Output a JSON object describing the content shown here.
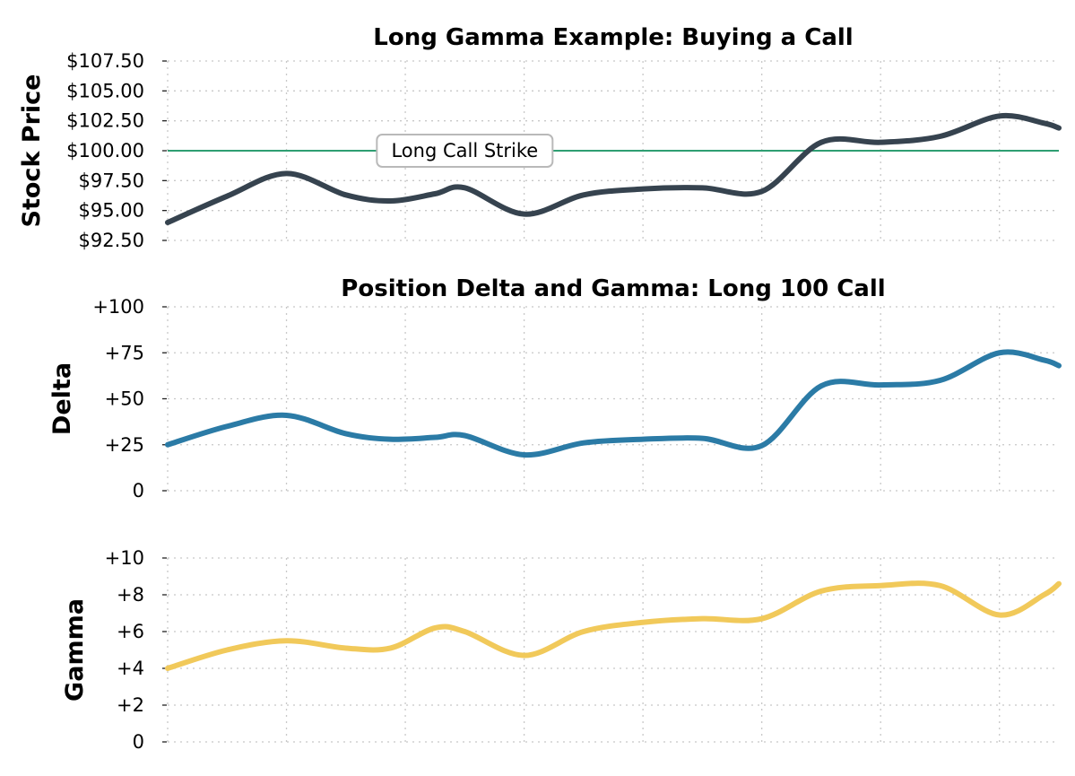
{
  "chart_data": [
    {
      "type": "line",
      "title": "Long Gamma Example: Buying a Call",
      "ylabel": "Stock Price",
      "ylim": [
        92.5,
        107.5
      ],
      "yticks": [
        92.5,
        95,
        97.5,
        100,
        102.5,
        105,
        107.5
      ],
      "ytick_labels": [
        "$92.50",
        "$95.00",
        "$97.50",
        "$100.00",
        "$102.50",
        "$105.00",
        "$107.50"
      ],
      "xlim": [
        0,
        15
      ],
      "xgrid": [
        0,
        2,
        4,
        6,
        8,
        10,
        12,
        14
      ],
      "grid": true,
      "series": [
        {
          "color": "#36434f",
          "x": [
            0,
            1,
            2,
            3,
            3.75,
            4.5,
            5,
            6,
            7,
            8,
            9,
            10,
            11,
            12,
            13,
            14,
            14.75,
            15
          ],
          "y": [
            94,
            96.2,
            98.1,
            96.3,
            95.8,
            96.4,
            96.9,
            94.7,
            96.3,
            96.8,
            96.9,
            96.6,
            100.7,
            100.7,
            101.2,
            102.9,
            102.3,
            101.9
          ]
        }
      ],
      "hline": {
        "y": 100,
        "color": "#2e9e72",
        "label": "Long Call Strike",
        "label_x": 5
      }
    },
    {
      "type": "line",
      "title": "Position Delta and Gamma: Long 100 Call",
      "ylabel": "Delta",
      "ylim": [
        0,
        100
      ],
      "yticks": [
        0,
        25,
        50,
        75,
        100
      ],
      "ytick_labels": [
        "0",
        "+25",
        "+50",
        "+75",
        "+100"
      ],
      "xlim": [
        0,
        15
      ],
      "xgrid": [
        0,
        2,
        4,
        6,
        8,
        10,
        12,
        14
      ],
      "grid": true,
      "series": [
        {
          "color": "#2b7ba6",
          "x": [
            0,
            1,
            2,
            3,
            3.75,
            4.5,
            5,
            6,
            7,
            8,
            9,
            10,
            11,
            12,
            13,
            14,
            14.75,
            15
          ],
          "y": [
            25,
            35,
            41,
            31,
            28,
            29,
            30,
            19.5,
            26,
            28,
            28.5,
            24.5,
            57,
            57.5,
            60,
            75,
            71,
            68
          ]
        }
      ]
    },
    {
      "type": "line",
      "title": "",
      "ylabel": "Gamma",
      "ylim": [
        0,
        10
      ],
      "yticks": [
        0,
        2,
        4,
        6,
        8,
        10
      ],
      "ytick_labels": [
        "0",
        "+2",
        "+4",
        "+6",
        "+8",
        "+10"
      ],
      "xlim": [
        0,
        15
      ],
      "xgrid": [
        0,
        2,
        4,
        6,
        8,
        10,
        12,
        14
      ],
      "grid": true,
      "series": [
        {
          "color": "#f1c95a",
          "x": [
            0,
            1,
            2,
            3,
            3.75,
            4.5,
            5,
            6,
            7,
            8,
            9,
            10,
            11,
            12,
            13,
            14,
            14.75,
            15
          ],
          "y": [
            4,
            5,
            5.5,
            5.1,
            5.1,
            6.2,
            6,
            4.7,
            6,
            6.5,
            6.7,
            6.7,
            8.2,
            8.5,
            8.5,
            6.9,
            8,
            8.6
          ]
        }
      ]
    }
  ]
}
